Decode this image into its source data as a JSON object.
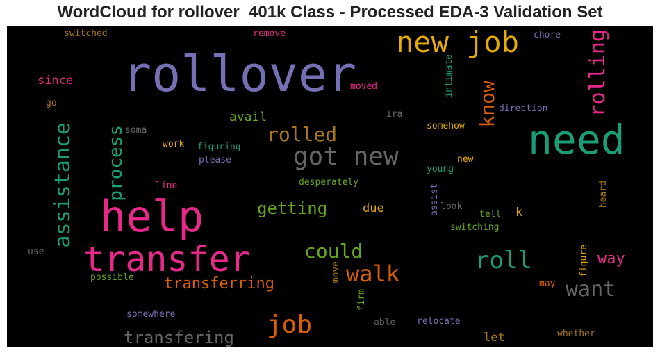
{
  "title": "WordCloud for rollover_401k Class - Processed EDA-3 Validation Set",
  "colors": {
    "purple": "#7570b3",
    "green": "#1b9e77",
    "pink": "#e7298a",
    "orange": "#d95f02",
    "gold": "#e6ab02",
    "olive": "#66a61e",
    "brown": "#a6761d",
    "gray": "#666666"
  },
  "words": {
    "rollover": "rollover",
    "need": "need",
    "help": "help",
    "transfer": "transfer",
    "new_job": "new job",
    "got_new": "got new",
    "assistance": "assistance",
    "rolling": "rolling",
    "rolled": "rolled",
    "know": "know",
    "process": "process",
    "roll": "roll",
    "walk": "walk",
    "could": "could",
    "getting": "getting",
    "want": "want",
    "job": "job",
    "transferring": "transferring",
    "transfering": "transfering",
    "way": "way",
    "avail": "avail",
    "due": "due",
    "since": "since",
    "switched": "switched",
    "remove": "remove",
    "chore": "chore",
    "moved": "moved",
    "intimate": "intimate",
    "go": "go",
    "ira": "ira",
    "direction": "direction",
    "soma": "soma",
    "somehow": "somehow",
    "work": "work",
    "figuring": "figuring",
    "please": "please",
    "young": "young",
    "new": "new",
    "line": "line",
    "desperately": "desperately",
    "assist": "assist",
    "look": "look",
    "k": "k",
    "tell": "tell",
    "heard": "heard",
    "switching": "switching",
    "use": "use",
    "figure": "figure",
    "possible": "possible",
    "move": "move",
    "firm": "firm",
    "may": "may",
    "somewhere": "somewhere",
    "able": "able",
    "relocate": "relocate",
    "let": "let",
    "whether": "whether"
  }
}
